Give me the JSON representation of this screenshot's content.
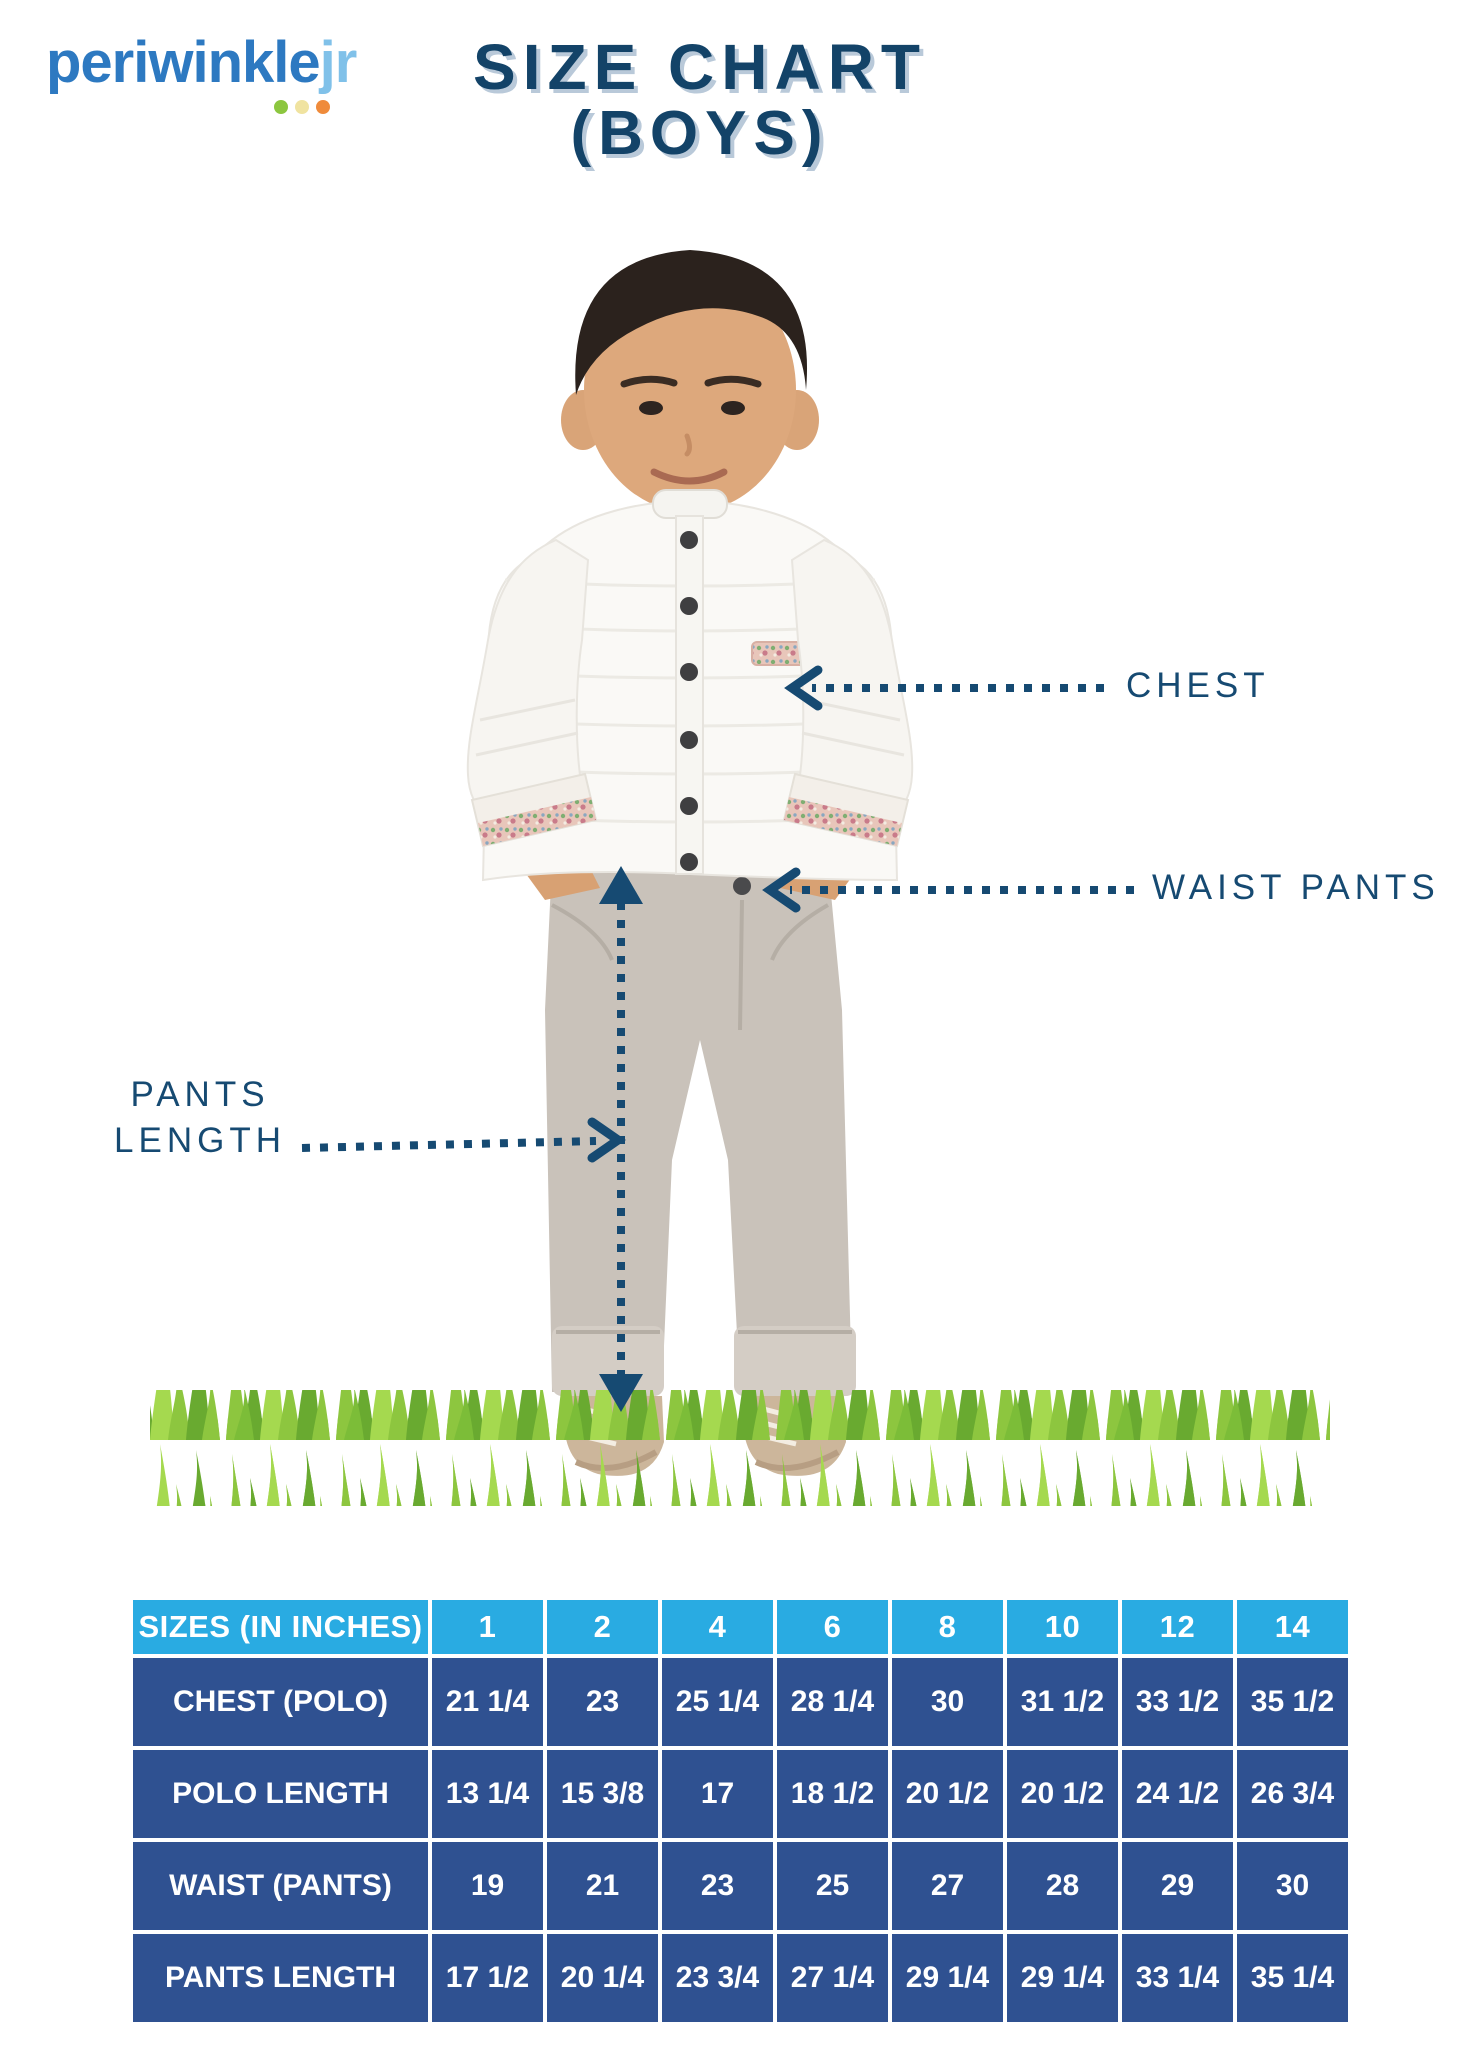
{
  "brand": {
    "logo_text": "periwinkle",
    "logo_suffix": "jr",
    "dot_colors": [
      "#8cc63f",
      "#f0e3a0",
      "#ef8b3b"
    ]
  },
  "header": {
    "title_line1": "SIZE CHART",
    "title_line2": "(BOYS)"
  },
  "annotations": {
    "chest": "CHEST",
    "waist": "WAIST PANTS",
    "pants_length_line1": "PANTS",
    "pants_length_line2": "LENGTH"
  },
  "colors": {
    "navy": "#164a72",
    "title_navy": "#134368",
    "table_header_bg": "#29abe2",
    "table_cell_bg": "#2f5191",
    "grass_light": "#8dc63f",
    "grass_dark": "#69aa30"
  },
  "table": {
    "header": [
      "SIZES (IN INCHES)",
      "1",
      "2",
      "4",
      "6",
      "8",
      "10",
      "12",
      "14"
    ],
    "rows": [
      {
        "label": "CHEST (POLO)",
        "values": [
          "21 1/4",
          "23",
          "25 1/4",
          "28 1/4",
          "30",
          "31 1/2",
          "33 1/2",
          "35 1/2"
        ]
      },
      {
        "label": "POLO LENGTH",
        "values": [
          "13 1/4",
          "15 3/8",
          "17",
          "18 1/2",
          "20 1/2",
          "20 1/2",
          "24 1/2",
          "26 3/4"
        ]
      },
      {
        "label": "WAIST (PANTS)",
        "values": [
          "19",
          "21",
          "23",
          "25",
          "27",
          "28",
          "29",
          "30"
        ]
      },
      {
        "label": "PANTS LENGTH",
        "values": [
          "17 1/2",
          "20 1/4",
          "23 3/4",
          "27 1/4",
          "29 1/4",
          "29 1/4",
          "33 1/4",
          "35 1/4"
        ]
      }
    ]
  }
}
